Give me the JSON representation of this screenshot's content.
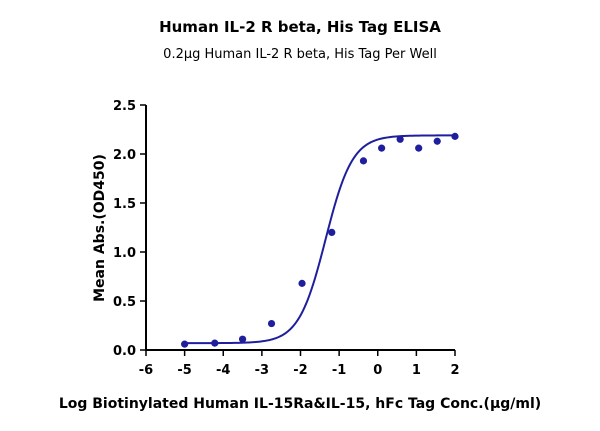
{
  "chart_data": {
    "type": "scatter",
    "title": "Human IL-2 R beta, His Tag ELISA",
    "subtitle": "0.2µg Human IL-2 R beta, His Tag Per Well",
    "xlabel": "Log Biotinylated Human IL-15Ra&IL-15, hFc Tag Conc.(µg/ml)",
    "ylabel": "Mean Abs.(OD450)",
    "xlim": [
      -6,
      2
    ],
    "ylim": [
      0,
      2.5
    ],
    "x_ticks": [
      -6,
      -5,
      -4,
      -3,
      -2,
      -1,
      0,
      1,
      2
    ],
    "x_tick_labels": [
      "-6",
      "-5",
      "-4",
      "-3",
      "-2",
      "-1",
      "0",
      "1",
      "2"
    ],
    "y_ticks": [
      0,
      0.5,
      1.0,
      1.5,
      2.0,
      2.5
    ],
    "y_tick_labels": [
      "0.0",
      "0.5",
      "1.0",
      "1.5",
      "2.0",
      "2.5"
    ],
    "grid": false,
    "color": "#1f1f9e",
    "series": [
      {
        "name": "Mean Abs.(OD450)",
        "x": [
          -5.0,
          -4.22,
          -3.5,
          -2.75,
          -1.96,
          -1.19,
          -0.37,
          0.1,
          0.58,
          1.06,
          1.54,
          2.0
        ],
        "y": [
          0.06,
          0.07,
          0.11,
          0.27,
          0.68,
          1.2,
          1.93,
          2.06,
          2.15,
          2.06,
          2.13,
          2.18
        ]
      }
    ],
    "fit": {
      "model": "4PL",
      "bottom": 0.07,
      "top": 2.19,
      "log_ec50": -1.35,
      "hill_slope": 1.25
    }
  }
}
